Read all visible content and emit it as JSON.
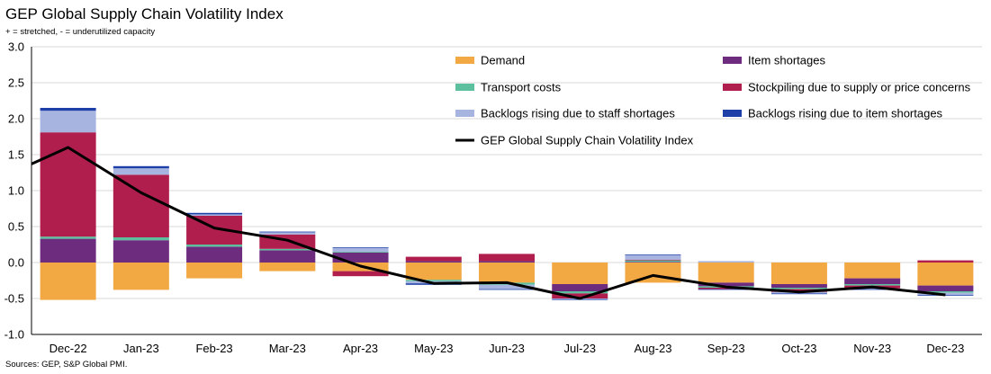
{
  "chart_data": {
    "type": "bar",
    "title": "GEP Global Supply Chain Volatility Index",
    "subtitle": "+ = stretched, - = underutilized capacity",
    "source": "Sources: GEP, S&P Global PMI.",
    "categories": [
      "Dec-22",
      "Jan-23",
      "Feb-23",
      "Mar-23",
      "Apr-23",
      "May-23",
      "Jun-23",
      "Jul-23",
      "Aug-23",
      "Sep-23",
      "Oct-23",
      "Nov-23",
      "Dec-23"
    ],
    "ylim": [
      -1.0,
      3.0
    ],
    "yticks": [
      "3.0",
      "2.5",
      "2.0",
      "1.5",
      "1.0",
      "0.5",
      "0.0",
      "-0.5",
      "-1.0"
    ],
    "grid": true,
    "legend_position": "top-right",
    "series": [
      {
        "name": "Demand",
        "color": "#F2A944",
        "values": [
          -0.52,
          -0.38,
          -0.22,
          -0.12,
          -0.12,
          -0.24,
          -0.28,
          -0.3,
          -0.28,
          -0.28,
          -0.3,
          -0.22,
          -0.32
        ]
      },
      {
        "name": "Item shortages",
        "color": "#6E2C7F",
        "values": [
          0.33,
          0.31,
          0.22,
          0.17,
          0.14,
          0.02,
          0.02,
          -0.1,
          0.01,
          -0.05,
          -0.05,
          -0.08,
          -0.08
        ]
      },
      {
        "name": "Transport costs",
        "color": "#5CBF9E",
        "values": [
          0.03,
          0.04,
          0.03,
          0.02,
          0.01,
          -0.02,
          -0.03,
          -0.03,
          0.02,
          -0.02,
          -0.02,
          -0.02,
          -0.02
        ]
      },
      {
        "name": "Stockpiling due to supply or price concerns",
        "color": "#B01E4E",
        "values": [
          1.45,
          0.87,
          0.4,
          0.2,
          -0.07,
          0.06,
          0.1,
          -0.07,
          0.01,
          -0.02,
          -0.04,
          -0.04,
          0.03
        ]
      },
      {
        "name": "Backlogs rising due to staff shortages",
        "color": "#A8B4E0",
        "values": [
          0.3,
          0.09,
          0.02,
          0.03,
          0.05,
          -0.03,
          -0.06,
          -0.01,
          0.06,
          0.02,
          -0.02,
          -0.01,
          -0.03
        ]
      },
      {
        "name": "Backlogs rising due to item shortages",
        "color": "#1F3FA8",
        "values": [
          0.04,
          0.03,
          0.02,
          0.01,
          0.01,
          -0.02,
          -0.01,
          -0.01,
          0.01,
          -0.01,
          -0.01,
          -0.01,
          -0.01
        ]
      }
    ],
    "line": {
      "name": "GEP Global Supply Chain Volatility Index",
      "color": "#000000",
      "start_value": 1.37,
      "values": [
        1.6,
        0.97,
        0.48,
        0.31,
        -0.05,
        -0.29,
        -0.28,
        -0.5,
        -0.18,
        -0.34,
        -0.41,
        -0.34,
        -0.45
      ]
    }
  }
}
